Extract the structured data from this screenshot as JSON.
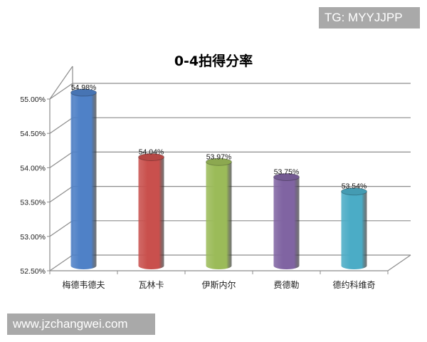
{
  "watermarks": {
    "top": "TG: MYYJJPP",
    "bottom": "www.jzchangwei.com"
  },
  "chart_data": {
    "type": "bar",
    "style": "3d-cylinder",
    "title": "0-4拍得分率",
    "categories": [
      "梅德韦德夫",
      "瓦林卡",
      "伊斯内尔",
      "费德勒",
      "德约科维奇"
    ],
    "values": [
      54.98,
      54.04,
      53.97,
      53.75,
      53.54
    ],
    "data_labels": [
      "54.98%",
      "54.04%",
      "53.97%",
      "53.75%",
      "53.54%"
    ],
    "colors": [
      "#4f81c7",
      "#c9504d",
      "#9bbb59",
      "#8064a2",
      "#4bacc6"
    ],
    "ylim": [
      52.5,
      55.0
    ],
    "yticks": [
      52.5,
      53.0,
      53.5,
      54.0,
      54.5,
      55.0
    ],
    "ytick_labels": [
      "52.50%",
      "53.00%",
      "53.50%",
      "54.00%",
      "54.50%",
      "55.00%"
    ],
    "grid": true,
    "legend": "none",
    "xlabel": "",
    "ylabel": ""
  }
}
